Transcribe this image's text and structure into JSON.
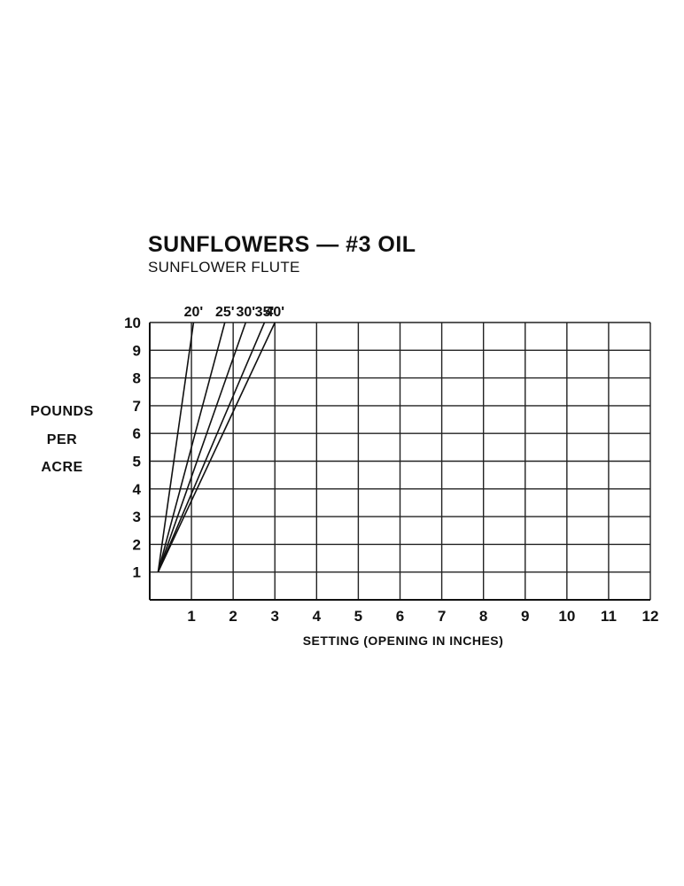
{
  "title": "SUNFLOWERS — #3 OIL",
  "subtitle": "SUNFLOWER FLUTE",
  "ylabel_lines": [
    "POUNDS",
    "PER",
    "ACRE"
  ],
  "chart_data": {
    "type": "line",
    "title": "SUNFLOWERS — #3 OIL",
    "subtitle": "SUNFLOWER FLUTE",
    "xlabel": "SETTING (OPENING IN INCHES)",
    "ylabel": "POUNDS PER ACRE",
    "xlim": [
      0,
      12
    ],
    "ylim": [
      0,
      10
    ],
    "xticks": [
      1,
      2,
      3,
      4,
      5,
      6,
      7,
      8,
      9,
      10,
      11,
      12
    ],
    "yticks": [
      1,
      2,
      3,
      4,
      5,
      6,
      7,
      8,
      9,
      10
    ],
    "grid": true,
    "series": [
      {
        "name": "20'",
        "x": [
          0.2,
          1.05
        ],
        "y": [
          1,
          10
        ]
      },
      {
        "name": "25'",
        "x": [
          0.2,
          1.8
        ],
        "y": [
          1,
          10
        ]
      },
      {
        "name": "30'",
        "x": [
          0.2,
          2.3
        ],
        "y": [
          1,
          10
        ]
      },
      {
        "name": "35'",
        "x": [
          0.2,
          2.75
        ],
        "y": [
          1,
          10
        ]
      },
      {
        "name": "40'",
        "x": [
          0.2,
          3.0
        ],
        "y": [
          1,
          10
        ]
      }
    ]
  }
}
